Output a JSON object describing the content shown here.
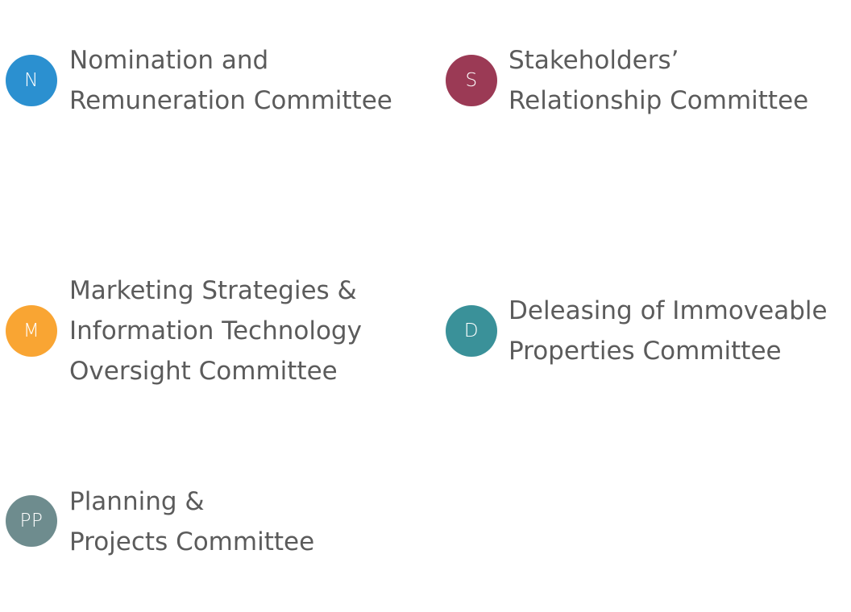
{
  "committees": [
    {
      "id": "nomination",
      "badge": "N",
      "color": "#2b90d0",
      "lines": [
        "Nomination and",
        "Remuneration Committee"
      ]
    },
    {
      "id": "stakeholders",
      "badge": "S",
      "color": "#9b3a55",
      "lines": [
        "Stakeholders’",
        "Relationship Committee"
      ]
    },
    {
      "id": "marketing",
      "badge": "M",
      "color": "#f9a533",
      "lines": [
        "Marketing Strategies &",
        "Information Technology",
        "Oversight Committee"
      ]
    },
    {
      "id": "deleasing",
      "badge": "D",
      "color": "#3a9199",
      "lines": [
        "Deleasing of Immoveable",
        "Properties Committee"
      ]
    },
    {
      "id": "planning",
      "badge": "PP",
      "color": "#6e8c8e",
      "lines": [
        "Planning &",
        "Projects Committee"
      ]
    }
  ]
}
